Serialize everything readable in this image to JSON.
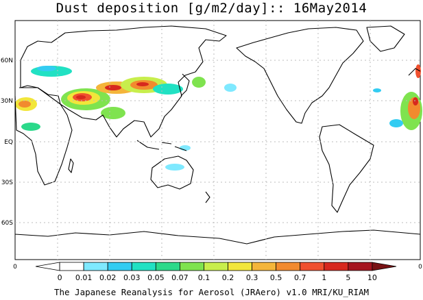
{
  "title": "Dust deposition [g/m2/day]:: 16May2014",
  "footer": "The Japanese Reanalysis for Aerosol (JRAero) v1.0 MRI/KU_RIAM",
  "lat_labels": [
    "60N",
    "30N",
    "EQ",
    "30S",
    "60S"
  ],
  "corner_left": "0",
  "corner_right": "0",
  "colorbar": {
    "labels": [
      "0",
      "0.01",
      "0.02",
      "0.03",
      "0.05",
      "0.07",
      "0.1",
      "0.2",
      "0.3",
      "0.5",
      "0.7",
      "1",
      "5",
      "10"
    ],
    "colors": [
      "#ffffff",
      "#ffffff",
      "#7fe9ff",
      "#33ccf2",
      "#21e1c3",
      "#2bd98a",
      "#7fe34f",
      "#c8ee4c",
      "#f2e63a",
      "#f4b53a",
      "#f28a2e",
      "#f0502e",
      "#d7281e",
      "#a5141e",
      "#781214"
    ]
  },
  "map_features": [
    "land-outlines",
    "dust-deposition-field",
    "latitude-grid"
  ]
}
